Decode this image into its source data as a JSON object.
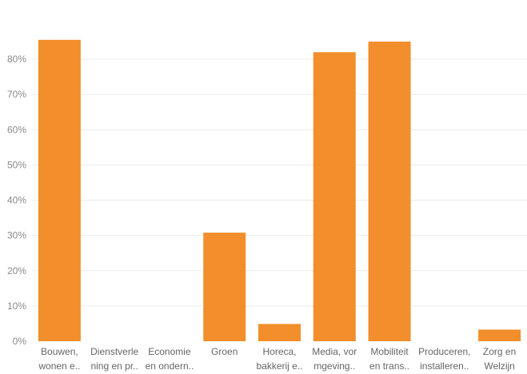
{
  "chart_data": {
    "type": "bar",
    "categories": [
      [
        "Bouwen,",
        "wonen e.."
      ],
      [
        "Dienstverle",
        "ning en pr.."
      ],
      [
        "Economie",
        "en ondern.."
      ],
      [
        "Groen"
      ],
      [
        "Horeca,",
        "bakkerij e.."
      ],
      [
        "Media, vor",
        "mgeving.."
      ],
      [
        "Mobiliteit",
        "en trans.."
      ],
      [
        "Produceren,",
        "installeren.."
      ],
      [
        "Zorg en",
        "Welzijn"
      ]
    ],
    "values": [
      85.5,
      0,
      0,
      30.8,
      4.9,
      82,
      85,
      0,
      3.3
    ],
    "ylim": [
      0,
      90
    ],
    "yticks": [
      0,
      10,
      20,
      30,
      40,
      50,
      60,
      70,
      80
    ],
    "ytick_labels": [
      "0%",
      "10%",
      "20%",
      "30%",
      "40%",
      "50%",
      "60%",
      "70%",
      "80%"
    ],
    "grid": true,
    "colors": {
      "bar": "#f28e2b"
    }
  }
}
